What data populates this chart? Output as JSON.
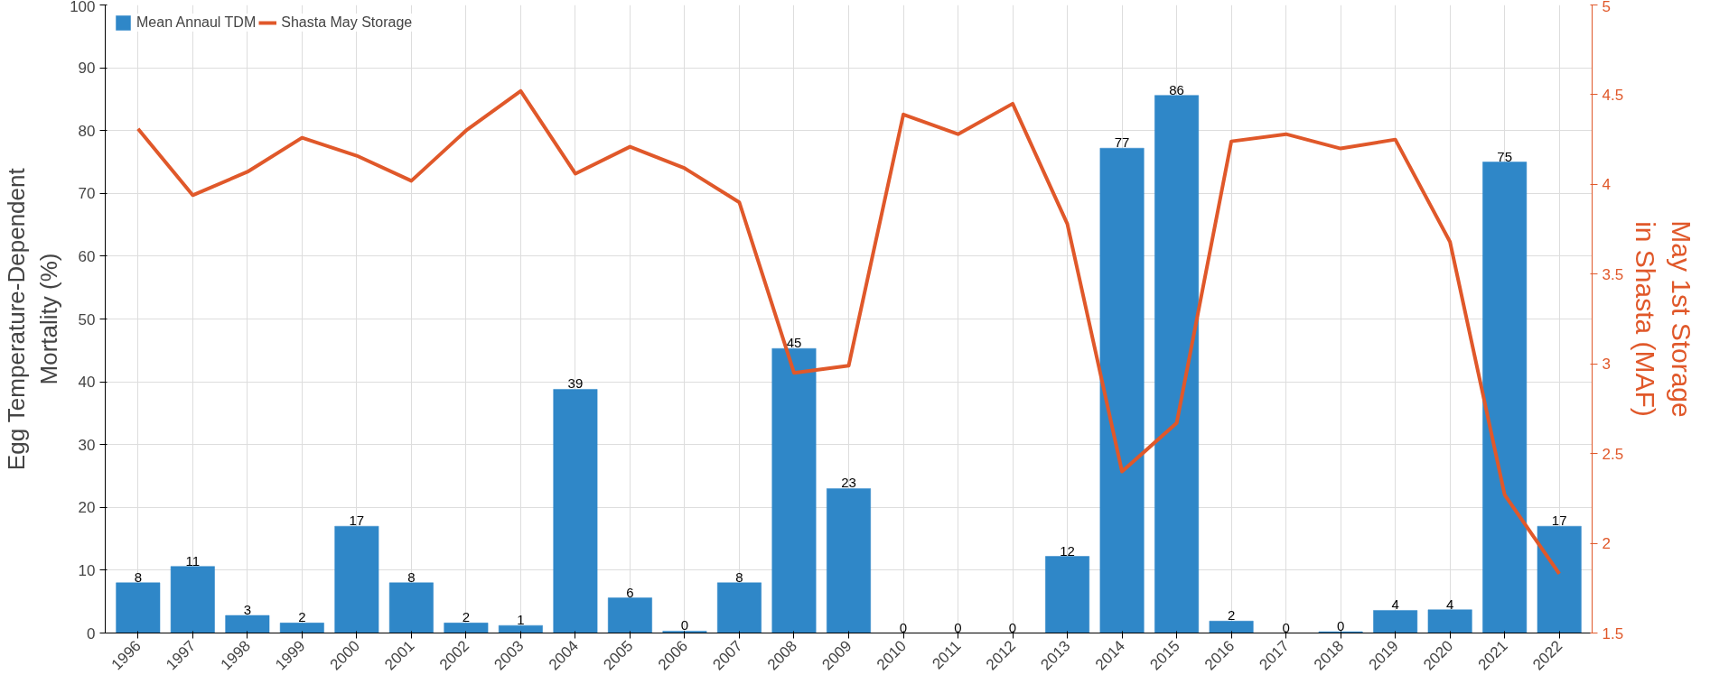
{
  "chart_data": {
    "type": "bar",
    "ylabel": "Egg Temperature-Dependent\nMortality (%)",
    "y2label": "May 1st Storage\nin Shasta (MAF)",
    "categories": [
      "1996",
      "1997",
      "1998",
      "1999",
      "2000",
      "2001",
      "2002",
      "2003",
      "2004",
      "2005",
      "2006",
      "2007",
      "2008",
      "2009",
      "2010",
      "2011",
      "2012",
      "2013",
      "2014",
      "2015",
      "2016",
      "2017",
      "2018",
      "2019",
      "2020",
      "2021",
      "2022"
    ],
    "series": [
      {
        "name": "Mean Annaul TDM",
        "color": "#2f87c8",
        "values": [
          8,
          10.6,
          2.8,
          1.6,
          17,
          8,
          1.6,
          1.2,
          38.8,
          5.6,
          0.3,
          8,
          45.3,
          23,
          0,
          0,
          0,
          12.2,
          77.2,
          85.6,
          1.9,
          0,
          0.2,
          3.6,
          3.7,
          75,
          17
        ],
        "value_labels": [
          "8",
          "11",
          "3",
          "2",
          "17",
          "8",
          "2",
          "1",
          "39",
          "6",
          "0",
          "8",
          "45",
          "23",
          "0",
          "0",
          "0",
          "12",
          "77",
          "86",
          "2",
          "0",
          "0",
          "4",
          "4",
          "75",
          "17"
        ]
      },
      {
        "name": "Shasta May Storage",
        "type": "line",
        "axis": "y2",
        "color": "#e0582a",
        "values": [
          4.31,
          3.94,
          4.07,
          4.26,
          4.16,
          4.02,
          4.3,
          4.52,
          4.06,
          4.21,
          4.09,
          3.9,
          2.95,
          2.99,
          4.39,
          4.28,
          4.45,
          3.78,
          2.4,
          2.67,
          4.24,
          4.28,
          4.2,
          4.25,
          3.68,
          2.27,
          1.83
        ]
      }
    ],
    "ylim": [
      0,
      100
    ],
    "yticks": [
      0,
      10,
      20,
      30,
      40,
      50,
      60,
      70,
      80,
      90,
      100
    ],
    "y2lim": [
      1.5,
      5
    ],
    "y2ticks": [
      1.5,
      2,
      2.5,
      3,
      3.5,
      4,
      4.5,
      5
    ],
    "grid": true,
    "legend": "top left"
  }
}
